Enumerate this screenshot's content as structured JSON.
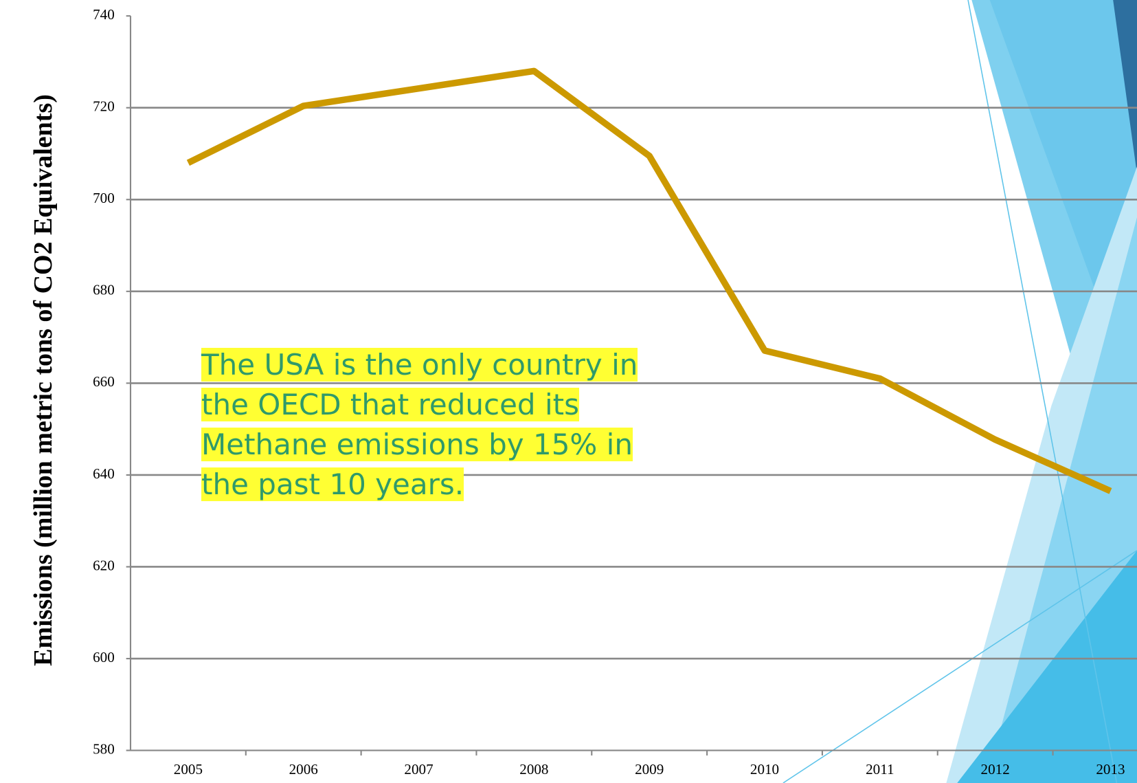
{
  "chart_data": {
    "type": "line",
    "y_label": "Emissions (million metric tons of CO2 Equivalents)",
    "annotation": "The USA is the only country in the OECD that reduced its Methane emissions by 15% in the past 10 years.",
    "categories": [
      "2005",
      "2006",
      "2007",
      "2008",
      "2009",
      "2010",
      "2011",
      "2012",
      "2013"
    ],
    "series": [
      {
        "color": "#cc9900",
        "values": [
          708,
          720.4,
          724.2,
          728,
          709.5,
          667.1,
          661,
          647.7,
          636.5
        ]
      }
    ],
    "ylim": [
      580,
      740
    ],
    "yticks": [
      580,
      600,
      620,
      640,
      660,
      680,
      700,
      720,
      740
    ],
    "grid": true
  }
}
